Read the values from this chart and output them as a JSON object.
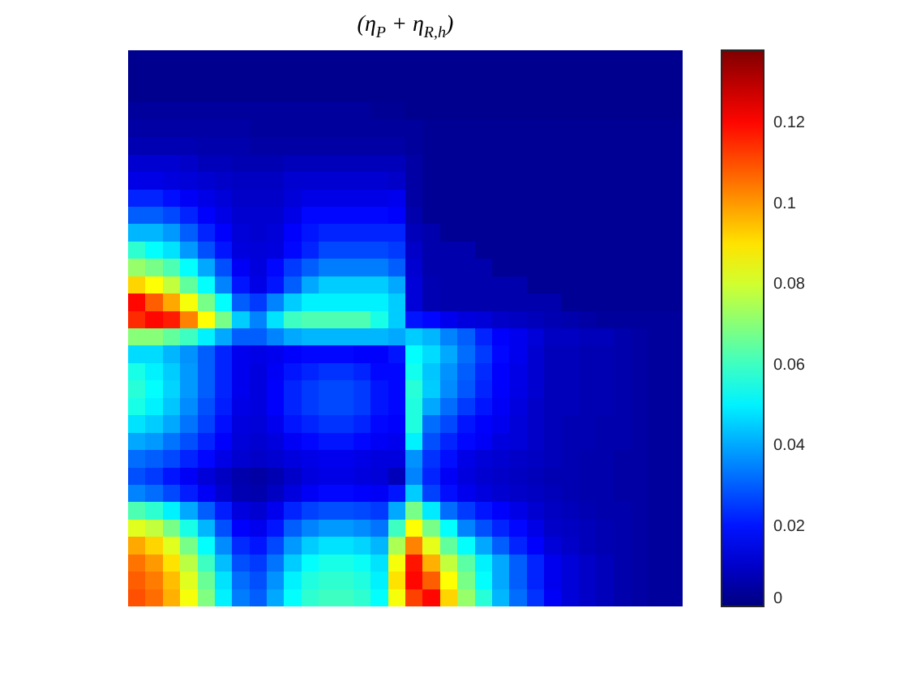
{
  "chart_data": {
    "type": "heatmap",
    "title": "(η$_{P}$ + η$_{R,h}$)",
    "categories": [
      null,
      null,
      null,
      null,
      null,
      null,
      null,
      null,
      null,
      null,
      null,
      null,
      null,
      null,
      null,
      null,
      null,
      null,
      null,
      null,
      null,
      null,
      null,
      null,
      null,
      null,
      null,
      null,
      null,
      null,
      null,
      null
    ],
    "y_categories": [
      null,
      null,
      null,
      null,
      null,
      null,
      null,
      null,
      null,
      null,
      null,
      null,
      null,
      null,
      null,
      null,
      null,
      null,
      null,
      null,
      null,
      null,
      null,
      null,
      null,
      null,
      null,
      null,
      null,
      null,
      null,
      null
    ],
    "clim": [
      0,
      0.138
    ],
    "cticks": [
      0,
      0.02,
      0.04,
      0.06,
      0.08,
      0.1,
      0.12
    ],
    "cells": [
      [
        0.002,
        0.002,
        0.002,
        0.002,
        0.002,
        0.002,
        0.002,
        0.002,
        0.002,
        0.002,
        0.002,
        0.002,
        0.002,
        0.002,
        0.002,
        0.002,
        0.002,
        0.002,
        0.002,
        0.002,
        0.002,
        0.002,
        0.002,
        0.002,
        0.002,
        0.002,
        0.002,
        0.002,
        0.002,
        0.002,
        0.002,
        0.002
      ],
      [
        0.002,
        0.002,
        0.002,
        0.002,
        0.002,
        0.002,
        0.002,
        0.002,
        0.002,
        0.002,
        0.002,
        0.002,
        0.002,
        0.002,
        0.002,
        0.002,
        0.002,
        0.002,
        0.002,
        0.002,
        0.002,
        0.002,
        0.002,
        0.002,
        0.002,
        0.002,
        0.002,
        0.002,
        0.002,
        0.002,
        0.002,
        0.002
      ],
      [
        0.002,
        0.002,
        0.002,
        0.002,
        0.002,
        0.002,
        0.002,
        0.002,
        0.002,
        0.002,
        0.002,
        0.002,
        0.002,
        0.002,
        0.002,
        0.002,
        0.002,
        0.002,
        0.002,
        0.002,
        0.002,
        0.002,
        0.002,
        0.002,
        0.002,
        0.002,
        0.002,
        0.002,
        0.002,
        0.002,
        0.002,
        0.002
      ],
      [
        0.004,
        0.004,
        0.004,
        0.004,
        0.004,
        0.004,
        0.004,
        0.004,
        0.004,
        0.004,
        0.004,
        0.004,
        0.004,
        0.004,
        0.003,
        0.003,
        0.002,
        0.002,
        0.002,
        0.002,
        0.002,
        0.002,
        0.002,
        0.002,
        0.002,
        0.002,
        0.002,
        0.002,
        0.002,
        0.002,
        0.002,
        0.002
      ],
      [
        0.005,
        0.005,
        0.005,
        0.005,
        0.005,
        0.005,
        0.005,
        0.004,
        0.004,
        0.004,
        0.004,
        0.004,
        0.004,
        0.004,
        0.004,
        0.004,
        0.004,
        0.003,
        0.003,
        0.003,
        0.003,
        0.003,
        0.003,
        0.003,
        0.003,
        0.003,
        0.003,
        0.003,
        0.003,
        0.003,
        0.003,
        0.003
      ],
      [
        0.007,
        0.007,
        0.007,
        0.007,
        0.006,
        0.006,
        0.006,
        0.005,
        0.005,
        0.005,
        0.005,
        0.005,
        0.005,
        0.005,
        0.005,
        0.005,
        0.004,
        0.003,
        0.003,
        0.003,
        0.003,
        0.003,
        0.003,
        0.003,
        0.003,
        0.003,
        0.003,
        0.003,
        0.003,
        0.003,
        0.003,
        0.003
      ],
      [
        0.011,
        0.011,
        0.011,
        0.01,
        0.008,
        0.008,
        0.007,
        0.007,
        0.007,
        0.008,
        0.008,
        0.008,
        0.008,
        0.008,
        0.008,
        0.008,
        0.005,
        0.003,
        0.003,
        0.003,
        0.003,
        0.003,
        0.003,
        0.003,
        0.003,
        0.003,
        0.003,
        0.003,
        0.003,
        0.003,
        0.003,
        0.003
      ],
      [
        0.014,
        0.014,
        0.013,
        0.012,
        0.011,
        0.01,
        0.009,
        0.009,
        0.009,
        0.011,
        0.011,
        0.011,
        0.011,
        0.011,
        0.011,
        0.01,
        0.005,
        0.003,
        0.003,
        0.003,
        0.003,
        0.003,
        0.003,
        0.003,
        0.003,
        0.003,
        0.003,
        0.003,
        0.003,
        0.003,
        0.003,
        0.003
      ],
      [
        0.022,
        0.022,
        0.019,
        0.016,
        0.014,
        0.012,
        0.01,
        0.01,
        0.01,
        0.012,
        0.014,
        0.014,
        0.014,
        0.014,
        0.014,
        0.015,
        0.005,
        0.003,
        0.003,
        0.003,
        0.003,
        0.003,
        0.003,
        0.003,
        0.003,
        0.003,
        0.003,
        0.003,
        0.003,
        0.003,
        0.003,
        0.003
      ],
      [
        0.03,
        0.03,
        0.027,
        0.022,
        0.017,
        0.014,
        0.011,
        0.011,
        0.011,
        0.014,
        0.018,
        0.018,
        0.018,
        0.018,
        0.018,
        0.017,
        0.006,
        0.003,
        0.003,
        0.003,
        0.003,
        0.003,
        0.003,
        0.003,
        0.003,
        0.003,
        0.003,
        0.003,
        0.003,
        0.003,
        0.003,
        0.003
      ],
      [
        0.042,
        0.042,
        0.038,
        0.03,
        0.022,
        0.017,
        0.012,
        0.011,
        0.012,
        0.017,
        0.02,
        0.022,
        0.022,
        0.022,
        0.022,
        0.022,
        0.008,
        0.006,
        0.003,
        0.003,
        0.003,
        0.003,
        0.003,
        0.003,
        0.003,
        0.003,
        0.003,
        0.003,
        0.003,
        0.003,
        0.003,
        0.003
      ],
      [
        0.058,
        0.052,
        0.048,
        0.038,
        0.028,
        0.02,
        0.013,
        0.012,
        0.013,
        0.018,
        0.022,
        0.027,
        0.027,
        0.027,
        0.027,
        0.025,
        0.01,
        0.006,
        0.006,
        0.006,
        0.003,
        0.003,
        0.003,
        0.003,
        0.003,
        0.003,
        0.003,
        0.003,
        0.003,
        0.003,
        0.003,
        0.003
      ],
      [
        0.072,
        0.068,
        0.062,
        0.052,
        0.04,
        0.028,
        0.016,
        0.013,
        0.018,
        0.025,
        0.03,
        0.034,
        0.034,
        0.034,
        0.034,
        0.03,
        0.011,
        0.006,
        0.006,
        0.006,
        0.006,
        0.003,
        0.003,
        0.003,
        0.003,
        0.003,
        0.003,
        0.003,
        0.003,
        0.003,
        0.003,
        0.003
      ],
      [
        0.092,
        0.086,
        0.078,
        0.065,
        0.052,
        0.035,
        0.02,
        0.014,
        0.02,
        0.03,
        0.04,
        0.045,
        0.045,
        0.045,
        0.045,
        0.04,
        0.012,
        0.007,
        0.006,
        0.006,
        0.006,
        0.006,
        0.006,
        0.003,
        0.003,
        0.003,
        0.003,
        0.003,
        0.003,
        0.003,
        0.003,
        0.003
      ],
      [
        0.12,
        0.108,
        0.098,
        0.085,
        0.068,
        0.052,
        0.03,
        0.025,
        0.035,
        0.045,
        0.05,
        0.05,
        0.05,
        0.05,
        0.05,
        0.045,
        0.012,
        0.007,
        0.006,
        0.006,
        0.006,
        0.006,
        0.006,
        0.006,
        0.006,
        0.003,
        0.003,
        0.003,
        0.003,
        0.003,
        0.003,
        0.003
      ],
      [
        0.115,
        0.12,
        0.117,
        0.103,
        0.086,
        0.068,
        0.045,
        0.035,
        0.048,
        0.06,
        0.062,
        0.062,
        0.062,
        0.062,
        0.055,
        0.045,
        0.02,
        0.018,
        0.015,
        0.013,
        0.012,
        0.01,
        0.009,
        0.008,
        0.007,
        0.006,
        0.005,
        0.004,
        0.004,
        0.004,
        0.004,
        0.004
      ],
      [
        0.07,
        0.07,
        0.065,
        0.06,
        0.05,
        0.04,
        0.03,
        0.03,
        0.035,
        0.04,
        0.042,
        0.042,
        0.042,
        0.042,
        0.042,
        0.04,
        0.045,
        0.042,
        0.035,
        0.03,
        0.022,
        0.017,
        0.015,
        0.012,
        0.009,
        0.009,
        0.008,
        0.008,
        0.006,
        0.005,
        0.004,
        0.004
      ],
      [
        0.047,
        0.047,
        0.042,
        0.037,
        0.03,
        0.022,
        0.015,
        0.014,
        0.015,
        0.017,
        0.018,
        0.018,
        0.018,
        0.017,
        0.017,
        0.02,
        0.052,
        0.047,
        0.04,
        0.032,
        0.025,
        0.018,
        0.015,
        0.011,
        0.008,
        0.008,
        0.007,
        0.007,
        0.006,
        0.005,
        0.004,
        0.004
      ],
      [
        0.055,
        0.05,
        0.045,
        0.038,
        0.03,
        0.022,
        0.015,
        0.013,
        0.016,
        0.02,
        0.022,
        0.024,
        0.024,
        0.022,
        0.018,
        0.018,
        0.054,
        0.044,
        0.037,
        0.03,
        0.023,
        0.017,
        0.014,
        0.011,
        0.008,
        0.008,
        0.007,
        0.007,
        0.006,
        0.005,
        0.004,
        0.004
      ],
      [
        0.057,
        0.052,
        0.046,
        0.038,
        0.03,
        0.022,
        0.015,
        0.013,
        0.017,
        0.022,
        0.025,
        0.027,
        0.027,
        0.025,
        0.02,
        0.018,
        0.057,
        0.045,
        0.036,
        0.029,
        0.022,
        0.017,
        0.014,
        0.011,
        0.008,
        0.008,
        0.007,
        0.007,
        0.006,
        0.005,
        0.004,
        0.004
      ],
      [
        0.055,
        0.05,
        0.044,
        0.036,
        0.028,
        0.021,
        0.014,
        0.013,
        0.017,
        0.022,
        0.025,
        0.027,
        0.027,
        0.025,
        0.02,
        0.018,
        0.056,
        0.04,
        0.032,
        0.025,
        0.02,
        0.016,
        0.013,
        0.01,
        0.008,
        0.008,
        0.007,
        0.007,
        0.006,
        0.005,
        0.004,
        0.004
      ],
      [
        0.048,
        0.045,
        0.04,
        0.033,
        0.026,
        0.019,
        0.013,
        0.012,
        0.015,
        0.02,
        0.022,
        0.024,
        0.024,
        0.022,
        0.018,
        0.017,
        0.056,
        0.032,
        0.027,
        0.02,
        0.017,
        0.015,
        0.012,
        0.01,
        0.008,
        0.007,
        0.007,
        0.006,
        0.006,
        0.005,
        0.004,
        0.004
      ],
      [
        0.04,
        0.038,
        0.033,
        0.028,
        0.022,
        0.017,
        0.012,
        0.011,
        0.013,
        0.016,
        0.018,
        0.02,
        0.02,
        0.018,
        0.016,
        0.015,
        0.05,
        0.028,
        0.022,
        0.018,
        0.016,
        0.013,
        0.012,
        0.01,
        0.008,
        0.007,
        0.007,
        0.006,
        0.006,
        0.005,
        0.004,
        0.004
      ],
      [
        0.032,
        0.03,
        0.027,
        0.022,
        0.018,
        0.014,
        0.011,
        0.01,
        0.011,
        0.013,
        0.014,
        0.015,
        0.015,
        0.014,
        0.013,
        0.013,
        0.037,
        0.024,
        0.019,
        0.014,
        0.012,
        0.011,
        0.01,
        0.009,
        0.008,
        0.007,
        0.006,
        0.006,
        0.005,
        0.005,
        0.004,
        0.004
      ],
      [
        0.028,
        0.025,
        0.02,
        0.016,
        0.012,
        0.009,
        0.006,
        0.005,
        0.007,
        0.01,
        0.013,
        0.014,
        0.014,
        0.013,
        0.012,
        0.008,
        0.035,
        0.022,
        0.016,
        0.013,
        0.011,
        0.01,
        0.009,
        0.008,
        0.007,
        0.007,
        0.006,
        0.006,
        0.005,
        0.005,
        0.004,
        0.004
      ],
      [
        0.035,
        0.032,
        0.027,
        0.021,
        0.016,
        0.011,
        0.007,
        0.006,
        0.009,
        0.013,
        0.016,
        0.018,
        0.018,
        0.017,
        0.016,
        0.02,
        0.045,
        0.026,
        0.019,
        0.015,
        0.013,
        0.011,
        0.01,
        0.009,
        0.008,
        0.007,
        0.006,
        0.006,
        0.005,
        0.005,
        0.004,
        0.004
      ],
      [
        0.062,
        0.058,
        0.05,
        0.04,
        0.03,
        0.021,
        0.013,
        0.011,
        0.015,
        0.022,
        0.026,
        0.028,
        0.028,
        0.027,
        0.025,
        0.04,
        0.068,
        0.049,
        0.032,
        0.025,
        0.02,
        0.017,
        0.014,
        0.011,
        0.009,
        0.008,
        0.007,
        0.006,
        0.006,
        0.005,
        0.004,
        0.004
      ],
      [
        0.082,
        0.078,
        0.068,
        0.055,
        0.042,
        0.028,
        0.017,
        0.015,
        0.02,
        0.03,
        0.035,
        0.038,
        0.038,
        0.036,
        0.033,
        0.06,
        0.086,
        0.068,
        0.052,
        0.035,
        0.028,
        0.022,
        0.018,
        0.014,
        0.01,
        0.009,
        0.008,
        0.007,
        0.006,
        0.005,
        0.004,
        0.004
      ],
      [
        0.098,
        0.092,
        0.082,
        0.068,
        0.052,
        0.036,
        0.023,
        0.02,
        0.027,
        0.038,
        0.045,
        0.048,
        0.048,
        0.046,
        0.042,
        0.075,
        0.103,
        0.083,
        0.065,
        0.052,
        0.04,
        0.03,
        0.022,
        0.017,
        0.012,
        0.01,
        0.008,
        0.007,
        0.006,
        0.005,
        0.004,
        0.004
      ],
      [
        0.105,
        0.1,
        0.09,
        0.077,
        0.06,
        0.043,
        0.028,
        0.025,
        0.033,
        0.045,
        0.052,
        0.055,
        0.055,
        0.053,
        0.048,
        0.085,
        0.118,
        0.097,
        0.078,
        0.064,
        0.05,
        0.04,
        0.03,
        0.022,
        0.015,
        0.012,
        0.01,
        0.008,
        0.006,
        0.005,
        0.004,
        0.004
      ],
      [
        0.108,
        0.104,
        0.095,
        0.082,
        0.066,
        0.048,
        0.032,
        0.028,
        0.037,
        0.05,
        0.056,
        0.058,
        0.058,
        0.056,
        0.05,
        0.09,
        0.12,
        0.108,
        0.086,
        0.068,
        0.052,
        0.04,
        0.03,
        0.022,
        0.015,
        0.012,
        0.01,
        0.008,
        0.006,
        0.005,
        0.004,
        0.004
      ],
      [
        0.11,
        0.106,
        0.097,
        0.085,
        0.069,
        0.05,
        0.034,
        0.03,
        0.04,
        0.052,
        0.058,
        0.06,
        0.06,
        0.058,
        0.052,
        0.085,
        0.112,
        0.12,
        0.092,
        0.072,
        0.057,
        0.042,
        0.032,
        0.024,
        0.016,
        0.012,
        0.01,
        0.008,
        0.006,
        0.005,
        0.004,
        0.004
      ]
    ]
  }
}
